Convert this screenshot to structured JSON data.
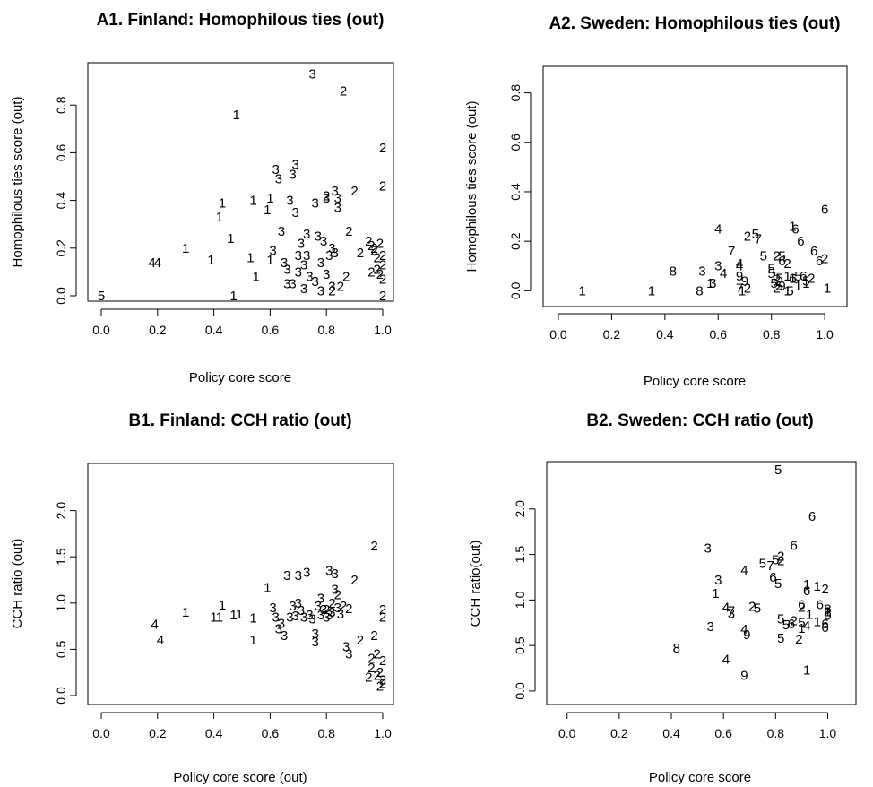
{
  "chart_data": [
    {
      "type": "scatter",
      "title": "A1. Finland: Homophilous ties (out)",
      "xlabel": "Policy core score",
      "ylabel": "Homophilous ties score (out)",
      "xlim": [
        0,
        1
      ],
      "ylim": [
        0,
        0.97
      ],
      "xticks": [
        "0.0",
        "0.2",
        "0.4",
        "0.6",
        "0.8",
        "1.0"
      ],
      "yticks": [
        "0.0",
        "0.2",
        "0.4",
        "0.6",
        "0.8"
      ],
      "point_labels": [
        "5",
        "4",
        "4",
        "1",
        "1",
        "1",
        "1",
        "1",
        "1",
        "1",
        "1",
        "1",
        "1",
        "1",
        "1",
        "1",
        "3",
        "3",
        "3",
        "3",
        "3",
        "3",
        "3",
        "3",
        "3",
        "3",
        "3",
        "3",
        "3",
        "3",
        "3",
        "3",
        "3",
        "3",
        "3",
        "3",
        "3",
        "3",
        "3",
        "3",
        "3",
        "3",
        "3",
        "3",
        "3",
        "3",
        "3",
        "3",
        "3",
        "3",
        "3",
        "3",
        "2",
        "2",
        "2",
        "2",
        "2",
        "2",
        "2",
        "2",
        "2",
        "2",
        "2",
        "2",
        "2",
        "2",
        "2",
        "2",
        "2",
        "2",
        "2",
        "2",
        "2",
        "2",
        "2"
      ],
      "x": [
        0.0,
        0.18,
        0.2,
        0.3,
        0.39,
        0.42,
        0.43,
        0.46,
        0.47,
        0.48,
        0.53,
        0.54,
        0.55,
        0.59,
        0.6,
        0.6,
        0.61,
        0.62,
        0.63,
        0.64,
        0.65,
        0.66,
        0.66,
        0.67,
        0.68,
        0.68,
        0.69,
        0.69,
        0.7,
        0.7,
        0.71,
        0.72,
        0.72,
        0.73,
        0.73,
        0.74,
        0.75,
        0.76,
        0.76,
        0.77,
        0.78,
        0.78,
        0.79,
        0.8,
        0.8,
        0.81,
        0.82,
        0.82,
        0.83,
        0.83,
        0.84,
        0.84,
        0.8,
        0.82,
        0.85,
        0.86,
        0.87,
        0.88,
        0.9,
        0.92,
        0.95,
        0.96,
        0.96,
        0.97,
        0.97,
        0.98,
        0.98,
        0.99,
        0.99,
        1.0,
        1.0,
        1.0,
        1.0,
        1.0,
        1.0
      ],
      "y": [
        0.0,
        0.14,
        0.14,
        0.2,
        0.15,
        0.33,
        0.39,
        0.24,
        0.0,
        0.76,
        0.16,
        0.4,
        0.08,
        0.36,
        0.41,
        0.15,
        0.19,
        0.53,
        0.49,
        0.27,
        0.14,
        0.05,
        0.11,
        0.4,
        0.51,
        0.05,
        0.55,
        0.35,
        0.17,
        0.1,
        0.22,
        0.03,
        0.13,
        0.26,
        0.17,
        0.08,
        0.93,
        0.39,
        0.06,
        0.25,
        0.14,
        0.02,
        0.23,
        0.09,
        0.41,
        0.17,
        0.04,
        0.2,
        0.18,
        0.44,
        0.41,
        0.37,
        0.42,
        0.02,
        0.04,
        0.86,
        0.08,
        0.27,
        0.44,
        0.18,
        0.23,
        0.1,
        0.21,
        0.2,
        0.19,
        0.16,
        0.11,
        0.22,
        0.09,
        0.62,
        0.46,
        0.17,
        0.13,
        0.07,
        0.0
      ],
      "values": [],
      "grid": false
    },
    {
      "type": "scatter",
      "title": "A2. Sweden: Homophilous ties (out)",
      "xlabel": "Policy core score",
      "ylabel": "Homophilous ties score (out)",
      "xlim": [
        -0.01,
        1.04
      ],
      "ylim": [
        -0.035,
        0.9
      ],
      "xticks": [
        "0.0",
        "0.2",
        "0.4",
        "0.6",
        "0.8",
        "1.0"
      ],
      "yticks": [
        "0.0",
        "0.2",
        "0.4",
        "0.6",
        "0.8"
      ],
      "point_labels": [
        "1",
        "1",
        "8",
        "8",
        "3",
        "1",
        "3",
        "4",
        "3",
        "4",
        "7",
        "2",
        "5",
        "7",
        "5",
        "4",
        "9",
        "4",
        "7",
        "1",
        "9",
        "2",
        "5",
        "5",
        "5",
        "2",
        "2",
        "5",
        "5",
        "6",
        "9",
        "1",
        "2",
        "5",
        "6",
        "1",
        "6",
        "5",
        "1",
        "6",
        "6",
        "1",
        "5",
        "2",
        "6",
        "6",
        "2",
        "6",
        "1",
        "5",
        "5",
        "1",
        "1"
      ],
      "x": [
        0.09,
        0.35,
        0.43,
        0.53,
        0.54,
        0.57,
        0.58,
        0.6,
        0.6,
        0.62,
        0.65,
        0.71,
        0.74,
        0.75,
        0.77,
        0.68,
        0.68,
        0.68,
        0.68,
        0.69,
        0.7,
        0.71,
        0.8,
        0.8,
        0.81,
        0.82,
        0.82,
        0.83,
        0.83,
        0.84,
        0.84,
        0.86,
        0.86,
        0.87,
        0.88,
        0.88,
        0.89,
        0.9,
        0.9,
        0.91,
        0.92,
        0.93,
        0.93,
        0.95,
        0.96,
        0.98,
        1.0,
        1.0,
        1.01,
        0.82,
        0.84,
        0.86,
        0.88
      ],
      "y": [
        0.0,
        0.0,
        0.08,
        0.0,
        0.08,
        0.03,
        0.03,
        0.25,
        0.1,
        0.07,
        0.16,
        0.22,
        0.23,
        0.21,
        0.14,
        0.1,
        0.06,
        0.11,
        0.01,
        0.0,
        0.04,
        0.01,
        0.09,
        0.07,
        0.03,
        0.14,
        0.01,
        0.05,
        0.02,
        0.12,
        0.02,
        0.06,
        0.11,
        0.0,
        0.05,
        0.26,
        0.25,
        0.06,
        0.02,
        0.2,
        0.06,
        0.03,
        0.04,
        0.05,
        0.16,
        0.12,
        0.13,
        0.33,
        0.01,
        0.06,
        0.14,
        0.0,
        0.05
      ],
      "values": [],
      "grid": false
    },
    {
      "type": "scatter",
      "title": "B1. Finland: CCH ratio (out)",
      "xlabel": "Policy core score (out)",
      "ylabel": "CCH ratio (out)",
      "xlim": [
        0,
        1
      ],
      "ylim": [
        0,
        2.5
      ],
      "xticks": [
        "0.0",
        "0.2",
        "0.4",
        "0.6",
        "0.8",
        "1.0"
      ],
      "yticks": [
        "0.0",
        "0.5",
        "1.0",
        "1.5",
        "2.0"
      ],
      "point_labels": [
        "4",
        "4",
        "1",
        "1",
        "1",
        "1",
        "1",
        "1",
        "1",
        "1",
        "1",
        "3",
        "3",
        "3",
        "3",
        "3",
        "3",
        "3",
        "3",
        "3",
        "3",
        "3",
        "3",
        "3",
        "3",
        "3",
        "3",
        "3",
        "3",
        "3",
        "3",
        "3",
        "3",
        "3",
        "3",
        "3",
        "3",
        "3",
        "3",
        "3",
        "3",
        "3",
        "3",
        "2",
        "2",
        "2",
        "2",
        "2",
        "2",
        "2",
        "2",
        "2",
        "2",
        "2",
        "2",
        "2",
        "2",
        "2",
        "2",
        "2",
        "2",
        "2",
        "2",
        "2"
      ],
      "x": [
        0.19,
        0.21,
        0.3,
        0.4,
        0.42,
        0.43,
        0.47,
        0.49,
        0.54,
        0.54,
        0.59,
        0.61,
        0.62,
        0.63,
        0.64,
        0.65,
        0.66,
        0.67,
        0.68,
        0.69,
        0.7,
        0.7,
        0.71,
        0.72,
        0.73,
        0.74,
        0.75,
        0.76,
        0.76,
        0.77,
        0.78,
        0.78,
        0.79,
        0.8,
        0.81,
        0.81,
        0.82,
        0.83,
        0.83,
        0.84,
        0.85,
        0.87,
        0.88,
        0.8,
        0.82,
        0.84,
        0.86,
        0.88,
        0.9,
        0.92,
        0.95,
        0.96,
        0.96,
        0.97,
        0.97,
        0.98,
        0.98,
        0.99,
        0.99,
        1.0,
        1.0,
        1.0,
        1.0,
        1.0
      ],
      "y": [
        0.77,
        0.6,
        0.9,
        0.85,
        0.85,
        0.98,
        0.87,
        0.88,
        0.84,
        0.6,
        1.17,
        0.95,
        0.85,
        0.72,
        0.78,
        0.65,
        1.3,
        0.85,
        0.97,
        0.86,
        1.3,
        1.0,
        0.92,
        0.85,
        1.33,
        0.87,
        0.83,
        0.67,
        0.58,
        0.97,
        0.87,
        1.05,
        0.93,
        0.85,
        1.35,
        0.87,
        0.9,
        1.32,
        1.15,
        0.95,
        0.88,
        0.53,
        0.45,
        0.93,
        1.0,
        1.09,
        0.97,
        0.94,
        1.25,
        0.6,
        0.2,
        0.3,
        0.4,
        1.62,
        0.65,
        0.45,
        0.22,
        0.1,
        0.25,
        0.93,
        0.85,
        0.38,
        0.17,
        0.13
      ],
      "values": [],
      "grid": false
    },
    {
      "type": "scatter",
      "title": "B2. Sweden: CCH ratio (out)",
      "xlabel": "Policy core score",
      "ylabel": "CCH ratio(out)",
      "xlim": [
        -0.03,
        1.05
      ],
      "ylim": [
        -0.05,
        2.5
      ],
      "xticks": [
        "0.0",
        "0.2",
        "0.4",
        "0.6",
        "0.8",
        "1.0"
      ],
      "yticks": [
        "0.0",
        "0.5",
        "1.0",
        "1.5",
        "2.0"
      ],
      "point_labels": [
        "8",
        "3",
        "3",
        "1",
        "3",
        "4",
        "4",
        "3",
        "7",
        "4",
        "9",
        "9",
        "2",
        "5",
        "5",
        "7",
        "5",
        "4",
        "6",
        "5",
        "2",
        "5",
        "5",
        "5",
        "2",
        "5",
        "6",
        "6",
        "2",
        "2",
        "6",
        "5",
        "1",
        "1",
        "1",
        "1",
        "1",
        "6",
        "2",
        "6",
        "6",
        "4",
        "1",
        "2",
        "6",
        "8",
        "6",
        "2",
        "1",
        "0"
      ],
      "x": [
        0.42,
        0.54,
        0.58,
        0.57,
        0.55,
        0.61,
        0.61,
        0.63,
        0.63,
        0.68,
        0.69,
        0.68,
        0.71,
        0.73,
        0.75,
        0.78,
        0.8,
        0.68,
        0.79,
        0.81,
        0.82,
        0.81,
        0.82,
        0.84,
        0.82,
        0.82,
        0.86,
        0.87,
        0.87,
        0.89,
        0.92,
        0.9,
        0.92,
        0.92,
        0.96,
        0.9,
        0.93,
        0.9,
        0.9,
        0.94,
        0.99,
        0.92,
        0.96,
        0.99,
        0.99,
        1.0,
        0.97,
        1.0,
        1.0,
        1.0
      ],
      "y": [
        0.47,
        1.57,
        1.22,
        1.07,
        0.71,
        0.35,
        0.92,
        0.85,
        0.88,
        0.68,
        0.62,
        0.17,
        0.93,
        0.91,
        1.4,
        1.38,
        1.44,
        1.33,
        1.25,
        1.18,
        1.43,
        2.43,
        0.79,
        0.73,
        1.48,
        0.58,
        0.74,
        1.6,
        0.77,
        0.57,
        1.1,
        0.75,
        1.17,
        0.23,
        0.76,
        0.69,
        0.84,
        0.95,
        0.92,
        1.92,
        0.74,
        0.72,
        1.15,
        1.12,
        0.7,
        0.9,
        0.95,
        0.87,
        0.87,
        0.83
      ],
      "values": [],
      "grid": false
    }
  ]
}
